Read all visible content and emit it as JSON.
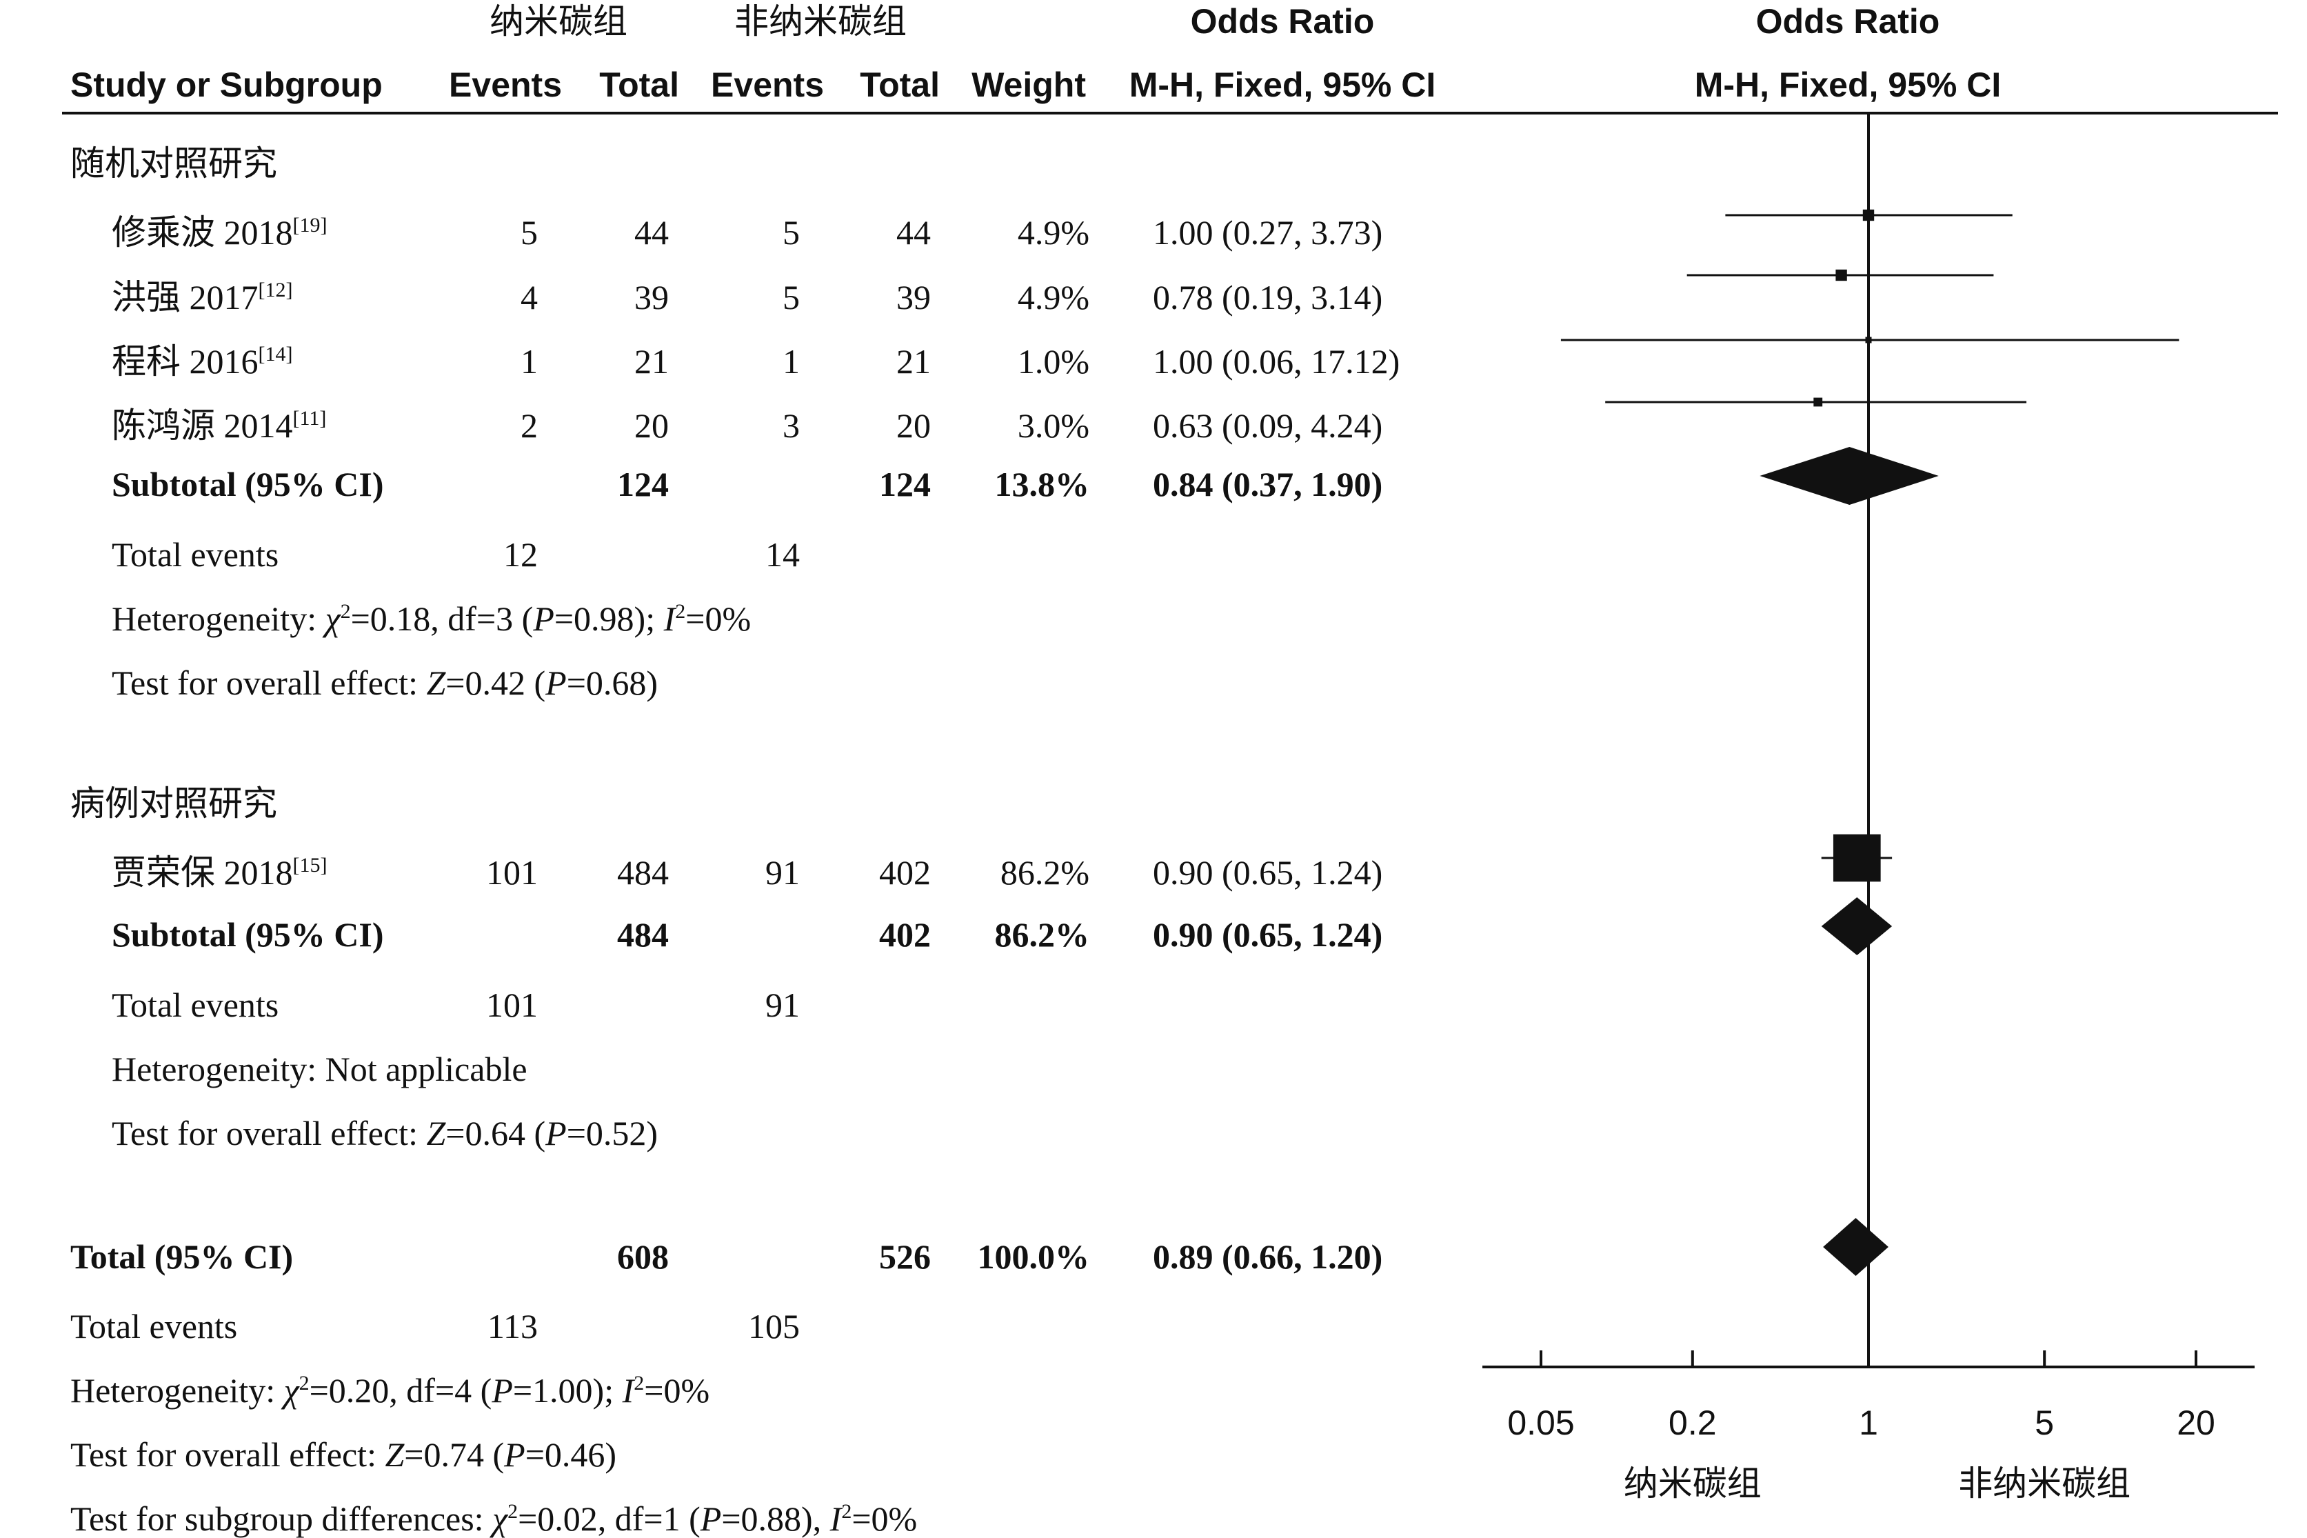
{
  "header": {
    "group_exp": "纳米碳组",
    "group_ctrl": "非纳米碳组",
    "col_study": "Study or Subgroup",
    "col_events": "Events",
    "col_total": "Total",
    "col_weight": "Weight",
    "or_label": "Odds Ratio",
    "or_method": "M-H, Fixed, 95% CI"
  },
  "groups": [
    {
      "name": "随机对照研究",
      "studies": [
        {
          "name": "修乘波 2018",
          "ref": "[19]",
          "e1": "5",
          "t1": "44",
          "e2": "5",
          "t2": "44",
          "weight": "4.9%",
          "ci": "1.00 (0.27, 3.73)"
        },
        {
          "name": "洪强 2017",
          "ref": "[12]",
          "e1": "4",
          "t1": "39",
          "e2": "5",
          "t2": "39",
          "weight": "4.9%",
          "ci": "0.78 (0.19, 3.14)"
        },
        {
          "name": "程科 2016",
          "ref": "[14]",
          "e1": "1",
          "t1": "21",
          "e2": "1",
          "t2": "21",
          "weight": "1.0%",
          "ci": "1.00 (0.06, 17.12)"
        },
        {
          "name": "陈鸿源 2014",
          "ref": "[11]",
          "e1": "2",
          "t1": "20",
          "e2": "3",
          "t2": "20",
          "weight": "3.0%",
          "ci": "0.63 (0.09, 4.24)"
        }
      ],
      "subtotal": {
        "label": "Subtotal (95% CI)",
        "t1": "124",
        "t2": "124",
        "weight": "13.8%",
        "ci": "0.84 (0.37, 1.90)"
      },
      "total_events": {
        "label": "Total events",
        "e1": "12",
        "e2": "14"
      },
      "heterogeneity": {
        "prefix": "Heterogeneity: ",
        "chi_sym": "χ",
        "chi_val": "=0.18, df=3 (",
        "p_sym": "P",
        "p_val": "=0.98); ",
        "i_sym": "I",
        "i_val": "=0%"
      },
      "overall": {
        "prefix": "Test for overall effect: ",
        "z_sym": "Z",
        "z_val": "=0.42 (",
        "p_sym": "P",
        "p_val": "=0.68)"
      }
    },
    {
      "name": "病例对照研究",
      "studies": [
        {
          "name": "贾荣保 2018",
          "ref": "[15]",
          "e1": "101",
          "t1": "484",
          "e2": "91",
          "t2": "402",
          "weight": "86.2%",
          "ci": "0.90 (0.65, 1.24)"
        }
      ],
      "subtotal": {
        "label": "Subtotal (95% CI)",
        "t1": "484",
        "t2": "402",
        "weight": "86.2%",
        "ci": "0.90 (0.65, 1.24)"
      },
      "total_events": {
        "label": "Total events",
        "e1": "101",
        "e2": "91"
      },
      "heterogeneity_text": "Heterogeneity: Not applicable",
      "overall": {
        "prefix": "Test for overall effect: ",
        "z_sym": "Z",
        "z_val": "=0.64 (",
        "p_sym": "P",
        "p_val": "=0.52)"
      }
    }
  ],
  "total": {
    "label": "Total (95% CI)",
    "t1": "608",
    "t2": "526",
    "weight": "100.0%",
    "ci": "0.89 (0.66, 1.20)",
    "events_label": "Total events",
    "e1": "113",
    "e2": "105",
    "heterogeneity": {
      "prefix": "Heterogeneity: ",
      "chi_sym": "χ",
      "chi_val": "=0.20, df=4 (",
      "p_sym": "P",
      "p_val": "=1.00); ",
      "i_sym": "I",
      "i_val": "=0%"
    },
    "overall": {
      "prefix": "Test for overall effect: ",
      "z_sym": "Z",
      "z_val": "=0.74 (",
      "p_sym": "P",
      "p_val": "=0.46)"
    },
    "subgroup": {
      "prefix": "Test for subgroup differences: ",
      "chi_sym": "χ",
      "chi_val": "=0.02, df=1 (",
      "p_sym": "P",
      "p_val": "=0.88), ",
      "i_sym": "I",
      "i_val": "=0%"
    }
  },
  "chart_data": {
    "type": "forest",
    "scale": "log",
    "xlim": [
      0.035,
      35
    ],
    "xticks": [
      0.05,
      0.2,
      1,
      5,
      20
    ],
    "xtick_labels": [
      "0.05",
      "0.2",
      "1",
      "5",
      "20"
    ],
    "x_left_label": "纳米碳组",
    "x_right_label": "非纳米碳组",
    "null_line": 1,
    "studies": [
      {
        "name": "修乘波 2018",
        "or": 1.0,
        "lo": 0.27,
        "hi": 3.73,
        "weight": 4.9
      },
      {
        "name": "洪强 2017",
        "or": 0.78,
        "lo": 0.19,
        "hi": 3.14,
        "weight": 4.9
      },
      {
        "name": "程科 2016",
        "or": 1.0,
        "lo": 0.06,
        "hi": 17.12,
        "weight": 1.0
      },
      {
        "name": "陈鸿源 2014",
        "or": 0.63,
        "lo": 0.09,
        "hi": 4.24,
        "weight": 3.0
      },
      {
        "name": "贾荣保 2018",
        "or": 0.9,
        "lo": 0.65,
        "hi": 1.24,
        "weight": 86.2
      }
    ],
    "diamonds": [
      {
        "name": "Subtotal 随机对照研究",
        "or": 0.84,
        "lo": 0.37,
        "hi": 1.9
      },
      {
        "name": "Subtotal 病例对照研究",
        "or": 0.9,
        "lo": 0.65,
        "hi": 1.24
      },
      {
        "name": "Total",
        "or": 0.89,
        "lo": 0.66,
        "hi": 1.2
      }
    ]
  }
}
